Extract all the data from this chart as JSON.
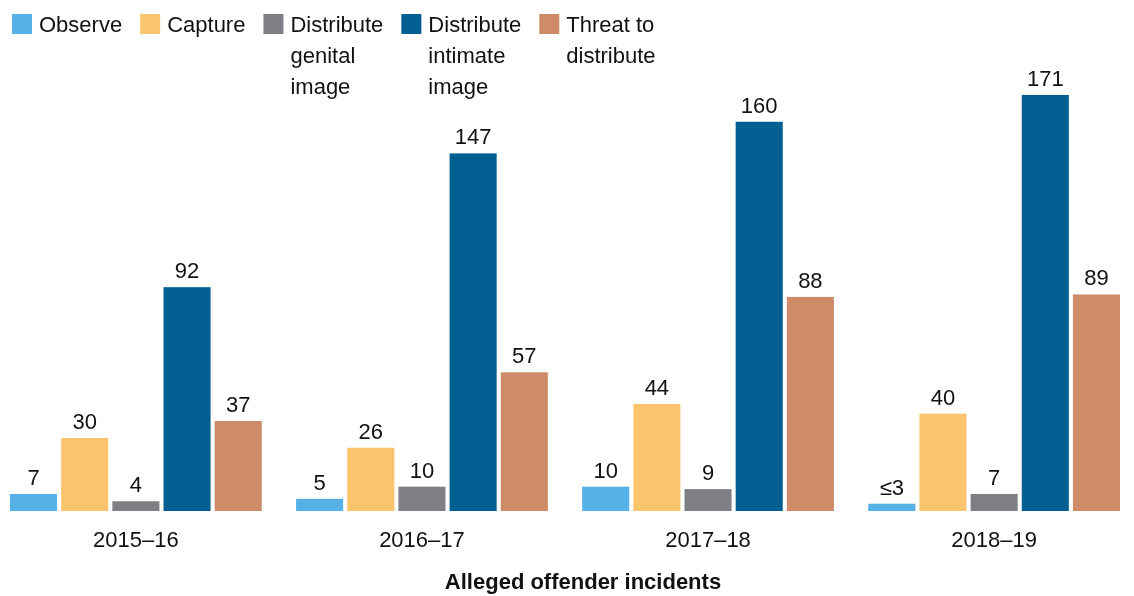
{
  "chart_data": {
    "type": "bar",
    "xlabel": "Alleged offender incidents",
    "categories": [
      "2015–16",
      "2016–17",
      "2017–18",
      "2018–19"
    ],
    "series": [
      {
        "name": "Observe",
        "color": "#56b2e6",
        "values": [
          7,
          5,
          10,
          3
        ],
        "value_labels": [
          "7",
          "5",
          "10",
          "≤3"
        ]
      },
      {
        "name": "Capture",
        "color": "#fdc46e",
        "values": [
          30,
          26,
          44,
          40
        ],
        "value_labels": [
          "30",
          "26",
          "44",
          "40"
        ]
      },
      {
        "name": "Distribute genital image",
        "color": "#7e7f84",
        "values": [
          4,
          10,
          9,
          7
        ],
        "value_labels": [
          "4",
          "10",
          "9",
          "7"
        ]
      },
      {
        "name": "Distribute intimate image",
        "color": "#015f91",
        "values": [
          92,
          147,
          160,
          171
        ],
        "value_labels": [
          "92",
          "147",
          "160",
          "171"
        ]
      },
      {
        "name": "Threat to distribute",
        "color": "#cd8b68",
        "values": [
          37,
          57,
          88,
          89
        ],
        "value_labels": [
          "37",
          "57",
          "88",
          "89"
        ]
      }
    ],
    "legend": "top left"
  }
}
